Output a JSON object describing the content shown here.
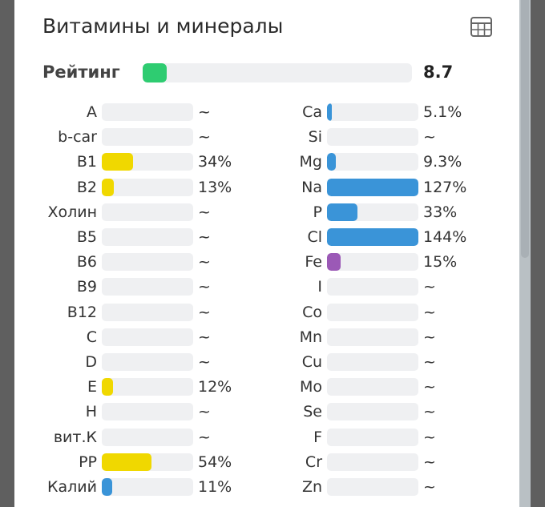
{
  "title": "Витамины и минералы",
  "rating": {
    "label": "Рейтинг",
    "value": "8.7",
    "fill_percent": 9
  },
  "colors": {
    "vitamin": "#f0d800",
    "mineral": "#3a94d8",
    "iron": "#9b59b6",
    "rating": "#2ecc71"
  },
  "vitamins": [
    {
      "name": "A",
      "value": "~",
      "pct": 0,
      "color": "#f0d800"
    },
    {
      "name": "b-car",
      "value": "~",
      "pct": 0,
      "color": "#f0d800"
    },
    {
      "name": "B1",
      "value": "34%",
      "pct": 34,
      "color": "#f0d800"
    },
    {
      "name": "B2",
      "value": "13%",
      "pct": 13,
      "color": "#f0d800"
    },
    {
      "name": "Холин",
      "value": "~",
      "pct": 0,
      "color": "#f0d800"
    },
    {
      "name": "B5",
      "value": "~",
      "pct": 0,
      "color": "#f0d800"
    },
    {
      "name": "B6",
      "value": "~",
      "pct": 0,
      "color": "#f0d800"
    },
    {
      "name": "B9",
      "value": "~",
      "pct": 0,
      "color": "#f0d800"
    },
    {
      "name": "B12",
      "value": "~",
      "pct": 0,
      "color": "#f0d800"
    },
    {
      "name": "C",
      "value": "~",
      "pct": 0,
      "color": "#f0d800"
    },
    {
      "name": "D",
      "value": "~",
      "pct": 0,
      "color": "#f0d800"
    },
    {
      "name": "E",
      "value": "12%",
      "pct": 12,
      "color": "#f0d800"
    },
    {
      "name": "H",
      "value": "~",
      "pct": 0,
      "color": "#f0d800"
    },
    {
      "name": "вит.К",
      "value": "~",
      "pct": 0,
      "color": "#f0d800"
    },
    {
      "name": "PP",
      "value": "54%",
      "pct": 54,
      "color": "#f0d800"
    },
    {
      "name": "Калий",
      "value": "11%",
      "pct": 11,
      "color": "#3a94d8"
    }
  ],
  "minerals": [
    {
      "name": "Ca",
      "value": "5.1%",
      "pct": 5.1,
      "color": "#3a94d8"
    },
    {
      "name": "Si",
      "value": "~",
      "pct": 0,
      "color": "#3a94d8"
    },
    {
      "name": "Mg",
      "value": "9.3%",
      "pct": 9.3,
      "color": "#3a94d8"
    },
    {
      "name": "Na",
      "value": "127%",
      "pct": 127,
      "color": "#3a94d8"
    },
    {
      "name": "P",
      "value": "33%",
      "pct": 33,
      "color": "#3a94d8"
    },
    {
      "name": "Cl",
      "value": "144%",
      "pct": 144,
      "color": "#3a94d8"
    },
    {
      "name": "Fe",
      "value": "15%",
      "pct": 15,
      "color": "#9b59b6"
    },
    {
      "name": "I",
      "value": "~",
      "pct": 0,
      "color": "#3a94d8"
    },
    {
      "name": "Co",
      "value": "~",
      "pct": 0,
      "color": "#3a94d8"
    },
    {
      "name": "Mn",
      "value": "~",
      "pct": 0,
      "color": "#3a94d8"
    },
    {
      "name": "Cu",
      "value": "~",
      "pct": 0,
      "color": "#3a94d8"
    },
    {
      "name": "Mo",
      "value": "~",
      "pct": 0,
      "color": "#3a94d8"
    },
    {
      "name": "Se",
      "value": "~",
      "pct": 0,
      "color": "#3a94d8"
    },
    {
      "name": "F",
      "value": "~",
      "pct": 0,
      "color": "#3a94d8"
    },
    {
      "name": "Cr",
      "value": "~",
      "pct": 0,
      "color": "#3a94d8"
    },
    {
      "name": "Zn",
      "value": "~",
      "pct": 0,
      "color": "#3a94d8"
    }
  ]
}
